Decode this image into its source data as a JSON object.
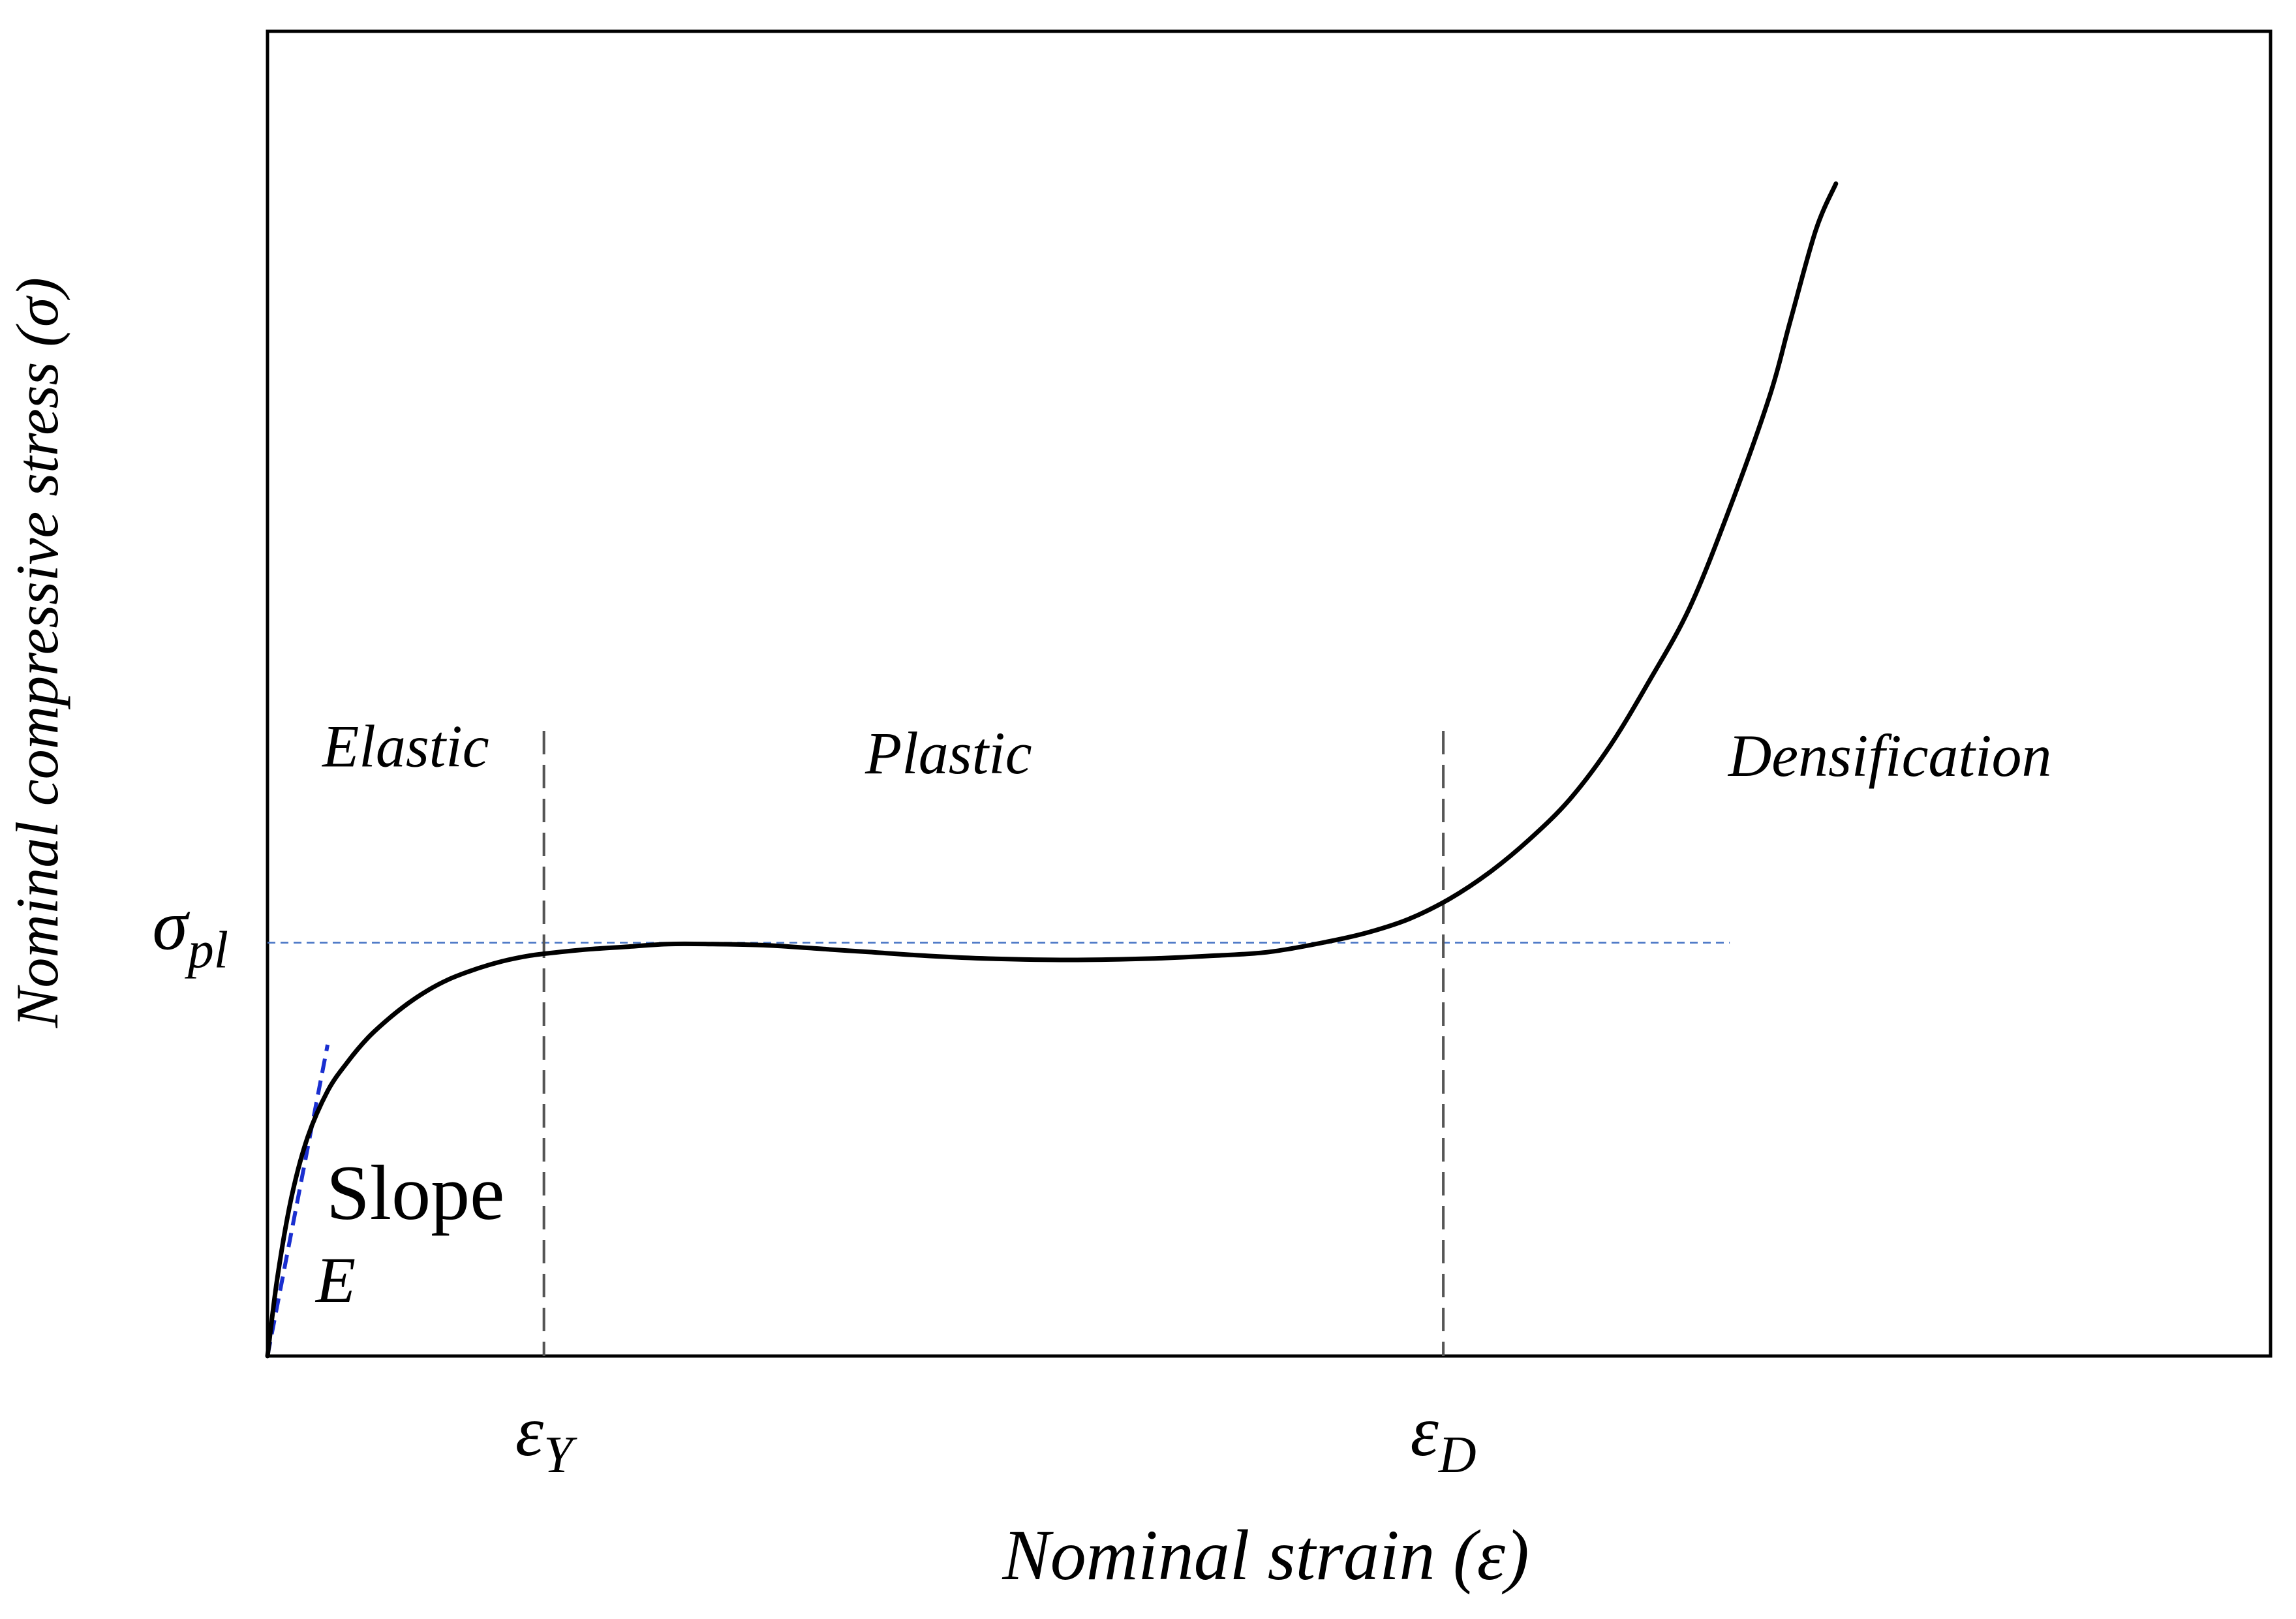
{
  "chart_data": {
    "type": "line",
    "title": "",
    "xlabel": "Nominal strain (ε)",
    "ylabel": "Nominal compressive stress (σ)",
    "xlim": [
      0,
      1
    ],
    "ylim": [
      0,
      1
    ],
    "grid": false,
    "x_ticks": [
      {
        "base": "ε",
        "sub": "Y",
        "value": 0.138
      },
      {
        "base": "ε",
        "sub": "D",
        "value": 0.587
      }
    ],
    "y_ticks": [
      {
        "base": "σ",
        "sub": "pl",
        "value": 0.312
      }
    ],
    "regions": [
      {
        "label": "Elastic",
        "x": 0.069,
        "y": 0.445
      },
      {
        "label": "Plastic",
        "x": 0.34,
        "y": 0.44
      },
      {
        "label": "Densification",
        "x": 0.81,
        "y": 0.438
      }
    ],
    "slope_annotation": {
      "line1": "Slope",
      "line2": "E"
    },
    "series": [
      {
        "x": [
          0,
          0.005,
          0.012,
          0.02,
          0.03,
          0.04,
          0.05,
          0.06,
          0.07,
          0.08,
          0.09,
          0.1,
          0.11,
          0.12,
          0.13,
          0.14,
          0.16,
          0.18,
          0.2,
          0.22,
          0.25,
          0.28,
          0.3,
          0.33,
          0.36,
          0.4,
          0.44,
          0.47,
          0.5,
          0.53,
          0.55,
          0.57,
          0.59,
          0.61,
          0.63,
          0.65,
          0.67,
          0.69,
          0.71,
          0.73,
          0.75,
          0.76,
          0.773,
          0.783
        ],
        "y": [
          0,
          0.06,
          0.12,
          0.165,
          0.2,
          0.222,
          0.24,
          0.254,
          0.266,
          0.276,
          0.284,
          0.29,
          0.295,
          0.299,
          0.302,
          0.304,
          0.307,
          0.309,
          0.311,
          0.311,
          0.31,
          0.307,
          0.305,
          0.302,
          0.3,
          0.299,
          0.3,
          0.302,
          0.305,
          0.313,
          0.32,
          0.33,
          0.345,
          0.365,
          0.39,
          0.42,
          0.46,
          0.51,
          0.565,
          0.64,
          0.725,
          0.78,
          0.85,
          0.885
        ]
      }
    ],
    "slope_line": {
      "x": [
        0,
        0.03
      ],
      "y": [
        0,
        0.235
      ]
    },
    "plateau_line": {
      "y": 0.312,
      "x_end": 0.73
    },
    "colors": {
      "curve": "#000000",
      "dashed_reference": "#4472c4",
      "slope": "#1a2fd0",
      "divider": "#555555",
      "frame": "#000000"
    }
  }
}
